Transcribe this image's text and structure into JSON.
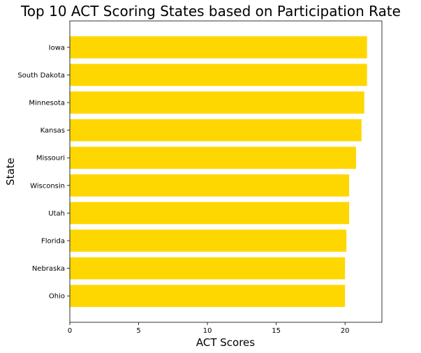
{
  "chart_data": {
    "type": "bar",
    "orientation": "horizontal",
    "title": "Top 10 ACT Scoring States based on Participation Rate",
    "xlabel": "ACT Scores",
    "ylabel": "State",
    "categories": [
      "Iowa",
      "South Dakota",
      "Minnesota",
      "Kansas",
      "Missouri",
      "Wisconsin",
      "Utah",
      "Florida",
      "Nebraska",
      "Ohio"
    ],
    "values": [
      21.6,
      21.6,
      21.4,
      21.2,
      20.8,
      20.3,
      20.3,
      20.1,
      20.0,
      20.0
    ],
    "xlim": [
      0,
      22.68
    ],
    "xticks": [
      0,
      5,
      10,
      15,
      20
    ],
    "grid": false,
    "bar_color": "#FFD700"
  }
}
